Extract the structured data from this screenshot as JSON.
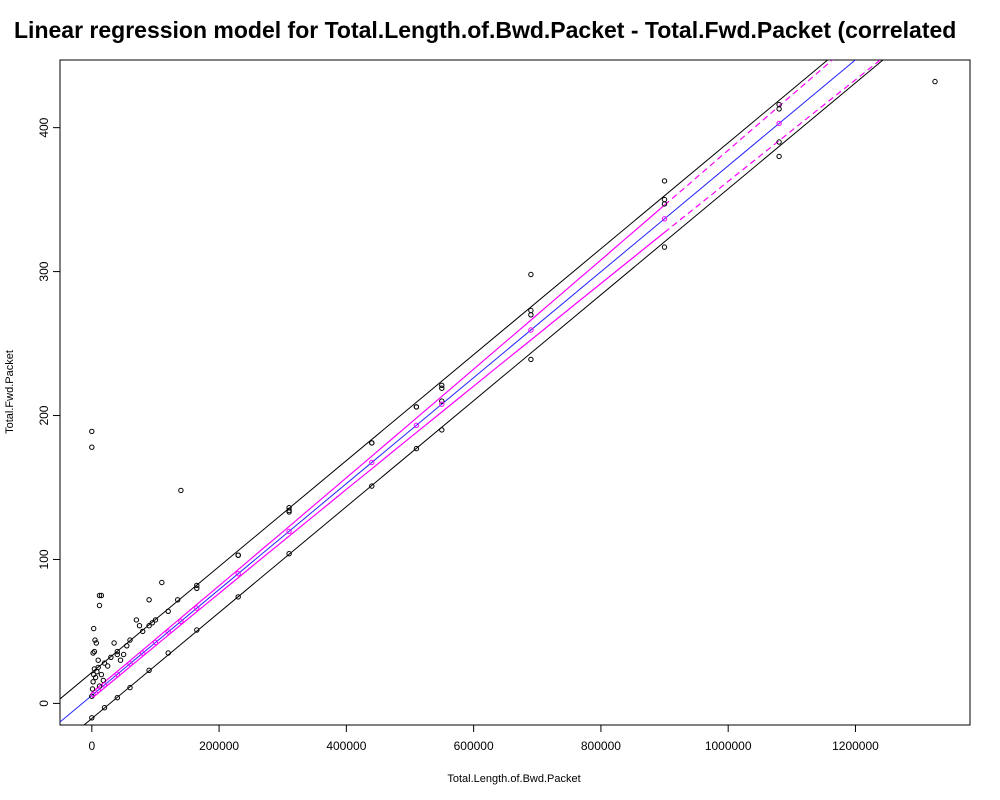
{
  "chart_data": {
    "type": "scatter",
    "title": "Linear regression model for Total.Length.of.Bwd.Packet - Total.Fwd.Packet (correlated",
    "xlabel": "Total.Length.of.Bwd.Packet",
    "ylabel": "Total.Fwd.Packet",
    "xlim": [
      -50000,
      1380000
    ],
    "ylim": [
      -15,
      447
    ],
    "x_ticks": [
      0,
      200000,
      400000,
      600000,
      800000,
      1000000,
      1200000
    ],
    "y_ticks": [
      0,
      100,
      200,
      300,
      400
    ],
    "x_tick_labels": [
      "0",
      "200000",
      "400000",
      "600000",
      "800000",
      "1000000",
      "1200000"
    ],
    "y_tick_labels": [
      "0",
      "100",
      "200",
      "300",
      "400"
    ],
    "grid": false,
    "legend": "none",
    "colors": {
      "points": "#000000",
      "fit_line": "#2222ff",
      "confidence": "#ff00ff",
      "prediction": "#000000"
    },
    "regression": {
      "intercept": 5.5,
      "slope": 0.000368
    },
    "confidence_band_half_width": [
      2,
      12
    ],
    "prediction_band_half_width": 16,
    "series": [
      {
        "name": "observed",
        "points": [
          [
            0,
            189
          ],
          [
            0,
            178
          ],
          [
            140000,
            148
          ],
          [
            110000,
            84
          ],
          [
            90000,
            72
          ],
          [
            12000,
            75
          ],
          [
            15000,
            75
          ],
          [
            12000,
            68
          ],
          [
            3000,
            52
          ],
          [
            5000,
            44
          ],
          [
            7000,
            42
          ],
          [
            2000,
            35
          ],
          [
            4000,
            36
          ],
          [
            10000,
            30
          ],
          [
            20000,
            28
          ],
          [
            25000,
            26
          ],
          [
            30000,
            32
          ],
          [
            35000,
            42
          ],
          [
            40000,
            34
          ],
          [
            45000,
            30
          ],
          [
            50000,
            34
          ],
          [
            55000,
            40
          ],
          [
            60000,
            44
          ],
          [
            70000,
            58
          ],
          [
            75000,
            54
          ],
          [
            80000,
            50
          ],
          [
            95000,
            56
          ],
          [
            100000,
            58
          ],
          [
            120000,
            64
          ],
          [
            135000,
            72
          ],
          [
            165000,
            80
          ],
          [
            230000,
            103
          ],
          [
            310000,
            136
          ],
          [
            310000,
            133
          ],
          [
            440000,
            181
          ],
          [
            510000,
            206
          ],
          [
            550000,
            219
          ],
          [
            550000,
            210
          ],
          [
            690000,
            298
          ],
          [
            690000,
            270
          ],
          [
            900000,
            363
          ],
          [
            900000,
            347
          ],
          [
            1080000,
            413
          ],
          [
            1080000,
            390
          ],
          [
            1325000,
            432
          ],
          [
            0,
            5
          ],
          [
            1000,
            10
          ],
          [
            2000,
            15
          ],
          [
            3000,
            20
          ],
          [
            4000,
            24
          ],
          [
            6000,
            18
          ],
          [
            8000,
            22
          ],
          [
            10000,
            25
          ],
          [
            12000,
            12
          ],
          [
            15000,
            20
          ],
          [
            18000,
            16
          ]
        ]
      },
      {
        "name": "prediction_band_upper",
        "points": [
          [
            40000,
            36
          ],
          [
            90000,
            54
          ],
          [
            165000,
            82
          ],
          [
            230000,
            103
          ],
          [
            310000,
            134
          ],
          [
            440000,
            181
          ],
          [
            510000,
            206
          ],
          [
            550000,
            221
          ],
          [
            690000,
            273
          ],
          [
            900000,
            350
          ],
          [
            1080000,
            416
          ]
        ]
      },
      {
        "name": "prediction_band_lower",
        "points": [
          [
            0,
            -10
          ],
          [
            20000,
            -3
          ],
          [
            40000,
            4
          ],
          [
            60000,
            11
          ],
          [
            90000,
            23
          ],
          [
            120000,
            35
          ],
          [
            165000,
            51
          ],
          [
            230000,
            74
          ],
          [
            310000,
            104
          ],
          [
            440000,
            151
          ],
          [
            510000,
            177
          ],
          [
            550000,
            190
          ],
          [
            690000,
            239
          ],
          [
            900000,
            317
          ],
          [
            1080000,
            380
          ]
        ]
      }
    ]
  }
}
